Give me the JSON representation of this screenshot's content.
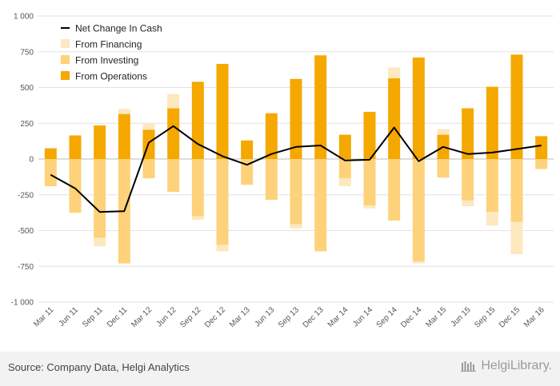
{
  "chart_data": {
    "type": "bar",
    "categories": [
      "Mar 11",
      "Jun 11",
      "Sep 11",
      "Dec 11",
      "Mar 12",
      "Jun 12",
      "Sep 12",
      "Dec 12",
      "Mar 13",
      "Jun 13",
      "Sep 13",
      "Dec 13",
      "Mar 14",
      "Jun 14",
      "Sep 14",
      "Dec 14",
      "Mar 15",
      "Jun 15",
      "Sep 15",
      "Dec 15",
      "Mar 16"
    ],
    "series": [
      {
        "name": "From Operations",
        "kind": "stacked-bar",
        "color": "#f5a800",
        "values": [
          75,
          165,
          235,
          315,
          205,
          355,
          540,
          665,
          130,
          320,
          560,
          725,
          170,
          330,
          565,
          710,
          170,
          355,
          505,
          730,
          160
        ]
      },
      {
        "name": "From Investing",
        "kind": "stacked-bar",
        "color": "#fdd27a",
        "values": [
          -190,
          -375,
          -550,
          -730,
          -135,
          -230,
          -400,
          -600,
          -180,
          -285,
          -455,
          -645,
          -135,
          -325,
          -430,
          -715,
          -130,
          -290,
          -370,
          -440,
          -70
        ]
      },
      {
        "name": "From Financing",
        "kind": "stacked-bar",
        "color": "#fde8bf",
        "values": [
          0,
          0,
          -60,
          35,
          40,
          100,
          -25,
          -45,
          0,
          0,
          -30,
          0,
          -55,
          -20,
          75,
          -15,
          40,
          -40,
          -95,
          -225,
          0
        ]
      },
      {
        "name": "Net Change In Cash",
        "kind": "line",
        "color": "#000000",
        "values": [
          -110,
          -205,
          -370,
          -365,
          115,
          230,
          105,
          20,
          -40,
          35,
          85,
          95,
          -10,
          -5,
          220,
          -15,
          85,
          35,
          45,
          70,
          95
        ]
      }
    ],
    "legend_order": [
      "Net Change In Cash",
      "From Financing",
      "From Investing",
      "From Operations"
    ],
    "y_ticks": [
      "1 000",
      "750",
      "500",
      "250",
      "0",
      "-250",
      "-500",
      "-750",
      "-1 000"
    ],
    "ylim": [
      -1000,
      1000
    ],
    "legend": "top-left",
    "grid": true
  },
  "footer": {
    "source": "Source: Company Data, Helgi Analytics",
    "brand": "HelgiLibrary."
  }
}
